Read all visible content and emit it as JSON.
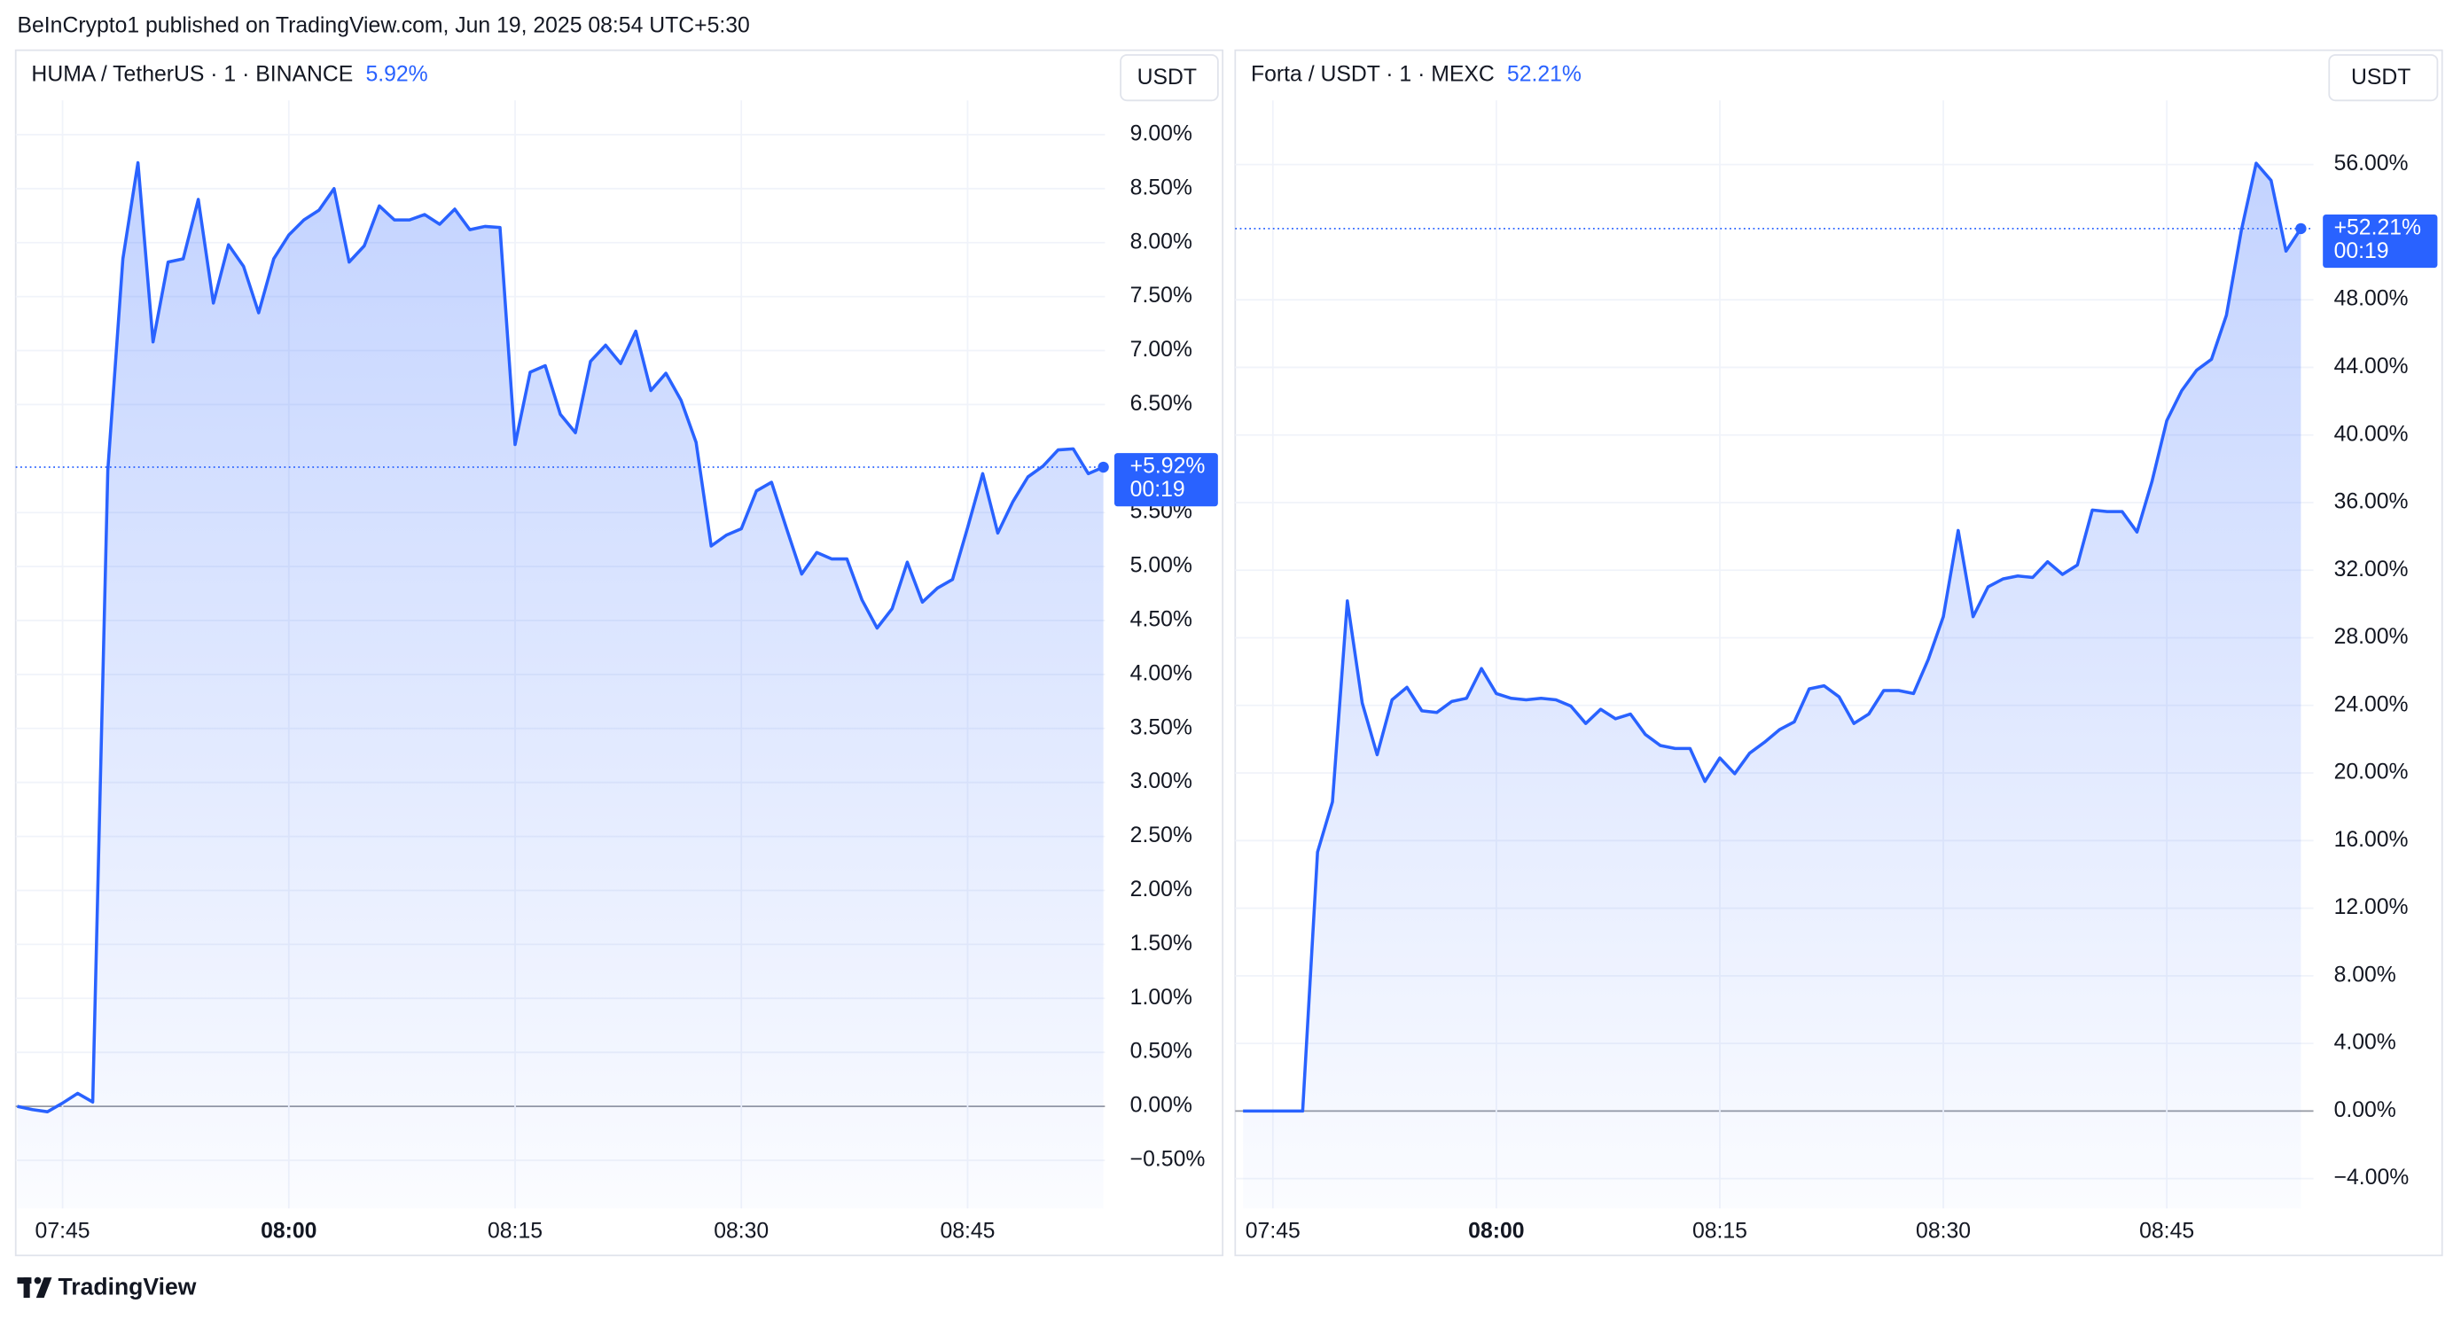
{
  "header": {
    "text": "BeInCrypto1 published on TradingView.com, Jun 19, 2025 08:54 UTC+5:30"
  },
  "footer": {
    "brand": "TradingView"
  },
  "chart_data": [
    {
      "type": "line",
      "title": "HUMA / TetherUS · 1 · BINANCE",
      "change": "5.92%",
      "currency": "USDT",
      "last_label": "+5.92%",
      "countdown": "00:19",
      "color": "#2962ff",
      "grid": true,
      "categories": [
        null,
        null,
        null,
        "07:45",
        null,
        null,
        null,
        null,
        null,
        null,
        null,
        null,
        null,
        null,
        null,
        null,
        null,
        null,
        "08:00",
        null,
        null,
        null,
        null,
        null,
        null,
        null,
        null,
        null,
        null,
        null,
        null,
        null,
        null,
        "08:15",
        null,
        null,
        null,
        null,
        null,
        null,
        null,
        null,
        null,
        null,
        null,
        null,
        null,
        null,
        "08:30",
        null,
        null,
        null,
        null,
        null,
        null,
        null,
        null,
        null,
        null,
        null,
        null,
        null,
        null,
        "08:45",
        null,
        null,
        null,
        null,
        null,
        null,
        null,
        null,
        null
      ],
      "values": [
        0.0,
        -0.03,
        -0.05,
        0.03,
        0.12,
        0.04,
        5.89,
        7.85,
        8.74,
        7.08,
        7.82,
        7.85,
        8.4,
        7.44,
        7.98,
        7.78,
        7.35,
        7.85,
        8.07,
        8.21,
        8.3,
        8.5,
        7.82,
        7.97,
        8.34,
        8.21,
        8.21,
        8.26,
        8.17,
        8.31,
        8.12,
        8.15,
        8.14,
        6.13,
        6.8,
        6.86,
        6.41,
        6.24,
        6.9,
        7.05,
        6.88,
        7.18,
        6.63,
        6.79,
        6.54,
        6.15,
        5.19,
        5.29,
        5.35,
        5.7,
        5.78,
        5.35,
        4.93,
        5.13,
        5.07,
        5.07,
        4.69,
        4.43,
        4.61,
        5.04,
        4.67,
        4.8,
        4.88,
        5.36,
        5.86,
        5.31,
        5.6,
        5.83,
        5.93,
        6.08,
        6.09,
        5.86,
        5.92
      ],
      "ylim": [
        -0.945,
        9.346
      ],
      "yticks": [
        {
          "value": -0.5,
          "label": "−0.50%"
        },
        {
          "value": 0,
          "label": "0.00%"
        },
        {
          "value": 0.5,
          "label": "0.50%"
        },
        {
          "value": 1,
          "label": "1.00%"
        },
        {
          "value": 1.5,
          "label": "1.50%"
        },
        {
          "value": 2,
          "label": "2.00%"
        },
        {
          "value": 2.5,
          "label": "2.50%"
        },
        {
          "value": 3,
          "label": "3.00%"
        },
        {
          "value": 3.5,
          "label": "3.50%"
        },
        {
          "value": 4,
          "label": "4.00%"
        },
        {
          "value": 4.5,
          "label": "4.50%"
        },
        {
          "value": 5,
          "label": "5.00%"
        },
        {
          "value": 5.5,
          "label": "5.50%"
        },
        {
          "value": 6.5,
          "label": "6.50%"
        },
        {
          "value": 7,
          "label": "7.00%"
        },
        {
          "value": 7.5,
          "label": "7.50%"
        },
        {
          "value": 8,
          "label": "8.00%"
        },
        {
          "value": 8.5,
          "label": "8.50%"
        },
        {
          "value": 9,
          "label": "9.00%"
        }
      ]
    },
    {
      "type": "line",
      "title": "Forta / USDT · 1 · MEXC",
      "change": "52.21%",
      "currency": "USDT",
      "last_label": "+52.21%",
      "countdown": "00:19",
      "color": "#2962ff",
      "grid": true,
      "categories": [
        null,
        null,
        "07:45",
        null,
        null,
        null,
        null,
        null,
        null,
        null,
        null,
        null,
        null,
        null,
        null,
        null,
        null,
        "08:00",
        null,
        null,
        null,
        null,
        null,
        null,
        null,
        null,
        null,
        null,
        null,
        null,
        null,
        null,
        "08:15",
        null,
        null,
        null,
        null,
        null,
        null,
        null,
        null,
        null,
        null,
        null,
        null,
        null,
        null,
        "08:30",
        null,
        null,
        null,
        null,
        null,
        null,
        null,
        null,
        null,
        null,
        null,
        null,
        null,
        null,
        "08:45",
        null,
        null,
        null,
        null,
        null,
        null,
        null,
        null,
        null
      ],
      "values": [
        0,
        0,
        0,
        0,
        0,
        15.32,
        18.29,
        30.18,
        24.14,
        21.08,
        24.33,
        25.07,
        23.68,
        23.58,
        24.23,
        24.42,
        26.18,
        24.7,
        24.42,
        24.33,
        24.42,
        24.33,
        23.96,
        22.93,
        23.77,
        23.21,
        23.49,
        22.28,
        21.63,
        21.45,
        21.45,
        19.5,
        20.89,
        19.96,
        21.17,
        21.82,
        22.56,
        23.03,
        24.98,
        25.16,
        24.51,
        22.93,
        23.49,
        24.88,
        24.88,
        24.7,
        26.74,
        29.25,
        34.35,
        29.25,
        31.01,
        31.48,
        31.66,
        31.57,
        32.5,
        31.75,
        32.31,
        35.56,
        35.47,
        35.47,
        34.26,
        37.23,
        40.85,
        42.62,
        43.83,
        44.48,
        47.08,
        52.09,
        56.08,
        55.06,
        50.88,
        52.21
      ],
      "ylim": [
        -5.76,
        59.98
      ],
      "yticks": [
        {
          "value": -4,
          "label": "−4.00%"
        },
        {
          "value": 0,
          "label": "0.00%"
        },
        {
          "value": 4,
          "label": "4.00%"
        },
        {
          "value": 8,
          "label": "8.00%"
        },
        {
          "value": 12,
          "label": "12.00%"
        },
        {
          "value": 16,
          "label": "16.00%"
        },
        {
          "value": 20,
          "label": "20.00%"
        },
        {
          "value": 24,
          "label": "24.00%"
        },
        {
          "value": 28,
          "label": "28.00%"
        },
        {
          "value": 32,
          "label": "32.00%"
        },
        {
          "value": 36,
          "label": "36.00%"
        },
        {
          "value": 40,
          "label": "40.00%"
        },
        {
          "value": 44,
          "label": "44.00%"
        },
        {
          "value": 48,
          "label": "48.00%"
        },
        {
          "value": 56,
          "label": "56.00%"
        }
      ]
    }
  ]
}
